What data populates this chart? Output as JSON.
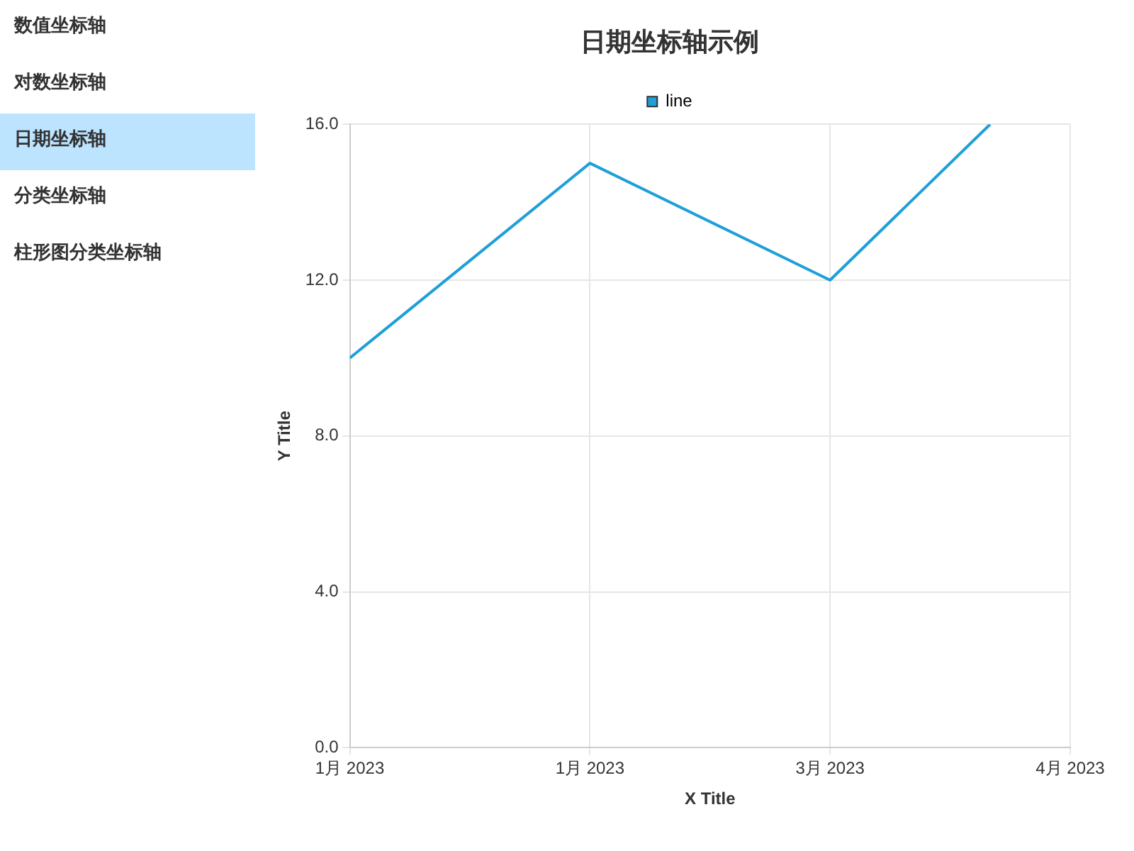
{
  "chart_data": {
    "type": "line",
    "title": "日期坐标轴示例",
    "xlabel": "X Title",
    "ylabel": "Y Title",
    "annotations": [
      "数值坐标轴",
      "对数坐标轴",
      "日期坐标轴",
      "分类坐标轴",
      "柱形图分类坐标轴"
    ],
    "x": [
      "2023-01-01",
      "2023-01-31",
      "2023-03-02",
      "2023-03-22"
    ],
    "series": [
      {
        "name": "line",
        "color": "#1f9fd9",
        "values": [
          10,
          15,
          12,
          16
        ]
      }
    ],
    "xlim": [
      "2023-01-01",
      "2023-04-01"
    ],
    "xticks": [
      {
        "value": "2023-01-01",
        "label": "1月 2023"
      },
      {
        "value": "2023-01-31",
        "label": "1月 2023"
      },
      {
        "value": "2023-03-02",
        "label": "3月 2023"
      },
      {
        "value": "2023-04-01",
        "label": "4月 2023"
      }
    ],
    "ylim": [
      0,
      16
    ],
    "yticks": [
      {
        "value": 0,
        "label": "0.0"
      },
      {
        "value": 4,
        "label": "4.0"
      },
      {
        "value": 8,
        "label": "8.0"
      },
      {
        "value": 12,
        "label": "12.0"
      },
      {
        "value": 16,
        "label": "16.0"
      }
    ],
    "grid": true,
    "legend": "top",
    "marker": "none",
    "line_style": "solid"
  }
}
